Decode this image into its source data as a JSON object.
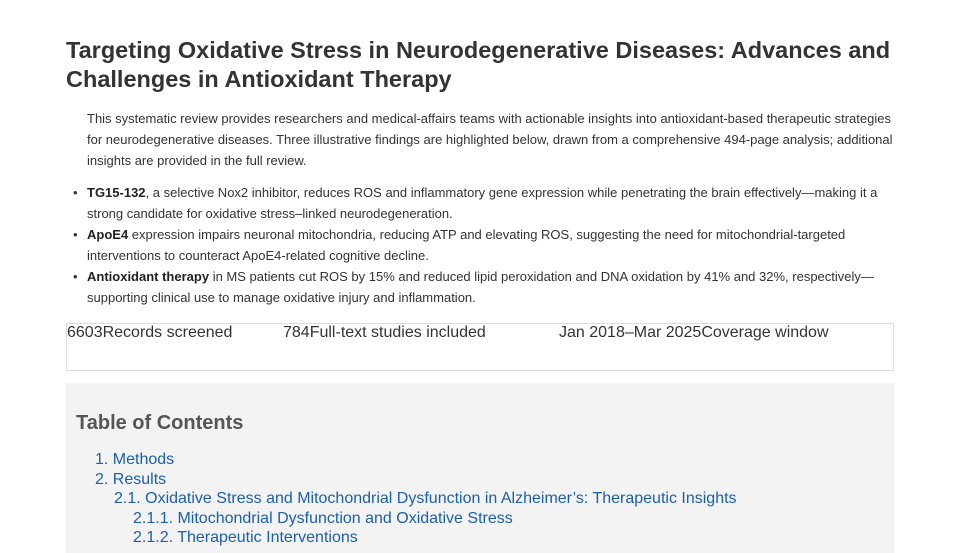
{
  "header": {
    "title": "Targeting Oxidative Stress in Neurodegenerative Diseases: Advances and Challenges in Antioxidant Therapy"
  },
  "intro": "This systematic review provides researchers and medical-affairs teams with actionable insights into antioxidant-based therapeutic strategies for neurodegenerative diseases. Three illustrative findings are highlighted below, drawn from a comprehensive 494-page analysis; additional insights are provided in the full review.",
  "findings": [
    {
      "bold": "TG15-132",
      "text": ", a selective Nox2 inhibitor, reduces ROS and inflammatory gene expression while penetrating the brain effectively—making it a strong candidate for oxidative stress–linked neurodegeneration."
    },
    {
      "bold": "ApoE4",
      "text": " expression impairs neuronal mitochondria, reducing ATP and elevating ROS, suggesting the need for mitochondrial-targeted interventions to counteract ApoE4-related cognitive decline."
    },
    {
      "bold": "Antioxidant therapy",
      "text": " in MS patients cut ROS by 15% and reduced lipid peroxidation and DNA oxidation by 41% and 32%, respectively—supporting clinical use to manage oxidative injury and inflammation."
    }
  ],
  "stats": [
    {
      "value": "6603",
      "label": "Records screened"
    },
    {
      "value": "784",
      "label": "Full-text studies included"
    },
    {
      "value": "Jan 2018–Mar 2025",
      "label": "Coverage window"
    }
  ],
  "toc": {
    "title": "Table of Contents",
    "items": [
      {
        "label": "1. Methods",
        "level": 1
      },
      {
        "label": "2. Results",
        "level": 1
      },
      {
        "label": "2.1. Oxidative Stress and Mitochondrial Dysfunction in Alzheimer’s: Therapeutic Insights",
        "level": 2
      },
      {
        "label": "2.1.1. Mitochondrial Dysfunction and Oxidative Stress",
        "level": 3
      },
      {
        "label": "2.1.2. Therapeutic Interventions",
        "level": 3
      }
    ]
  }
}
